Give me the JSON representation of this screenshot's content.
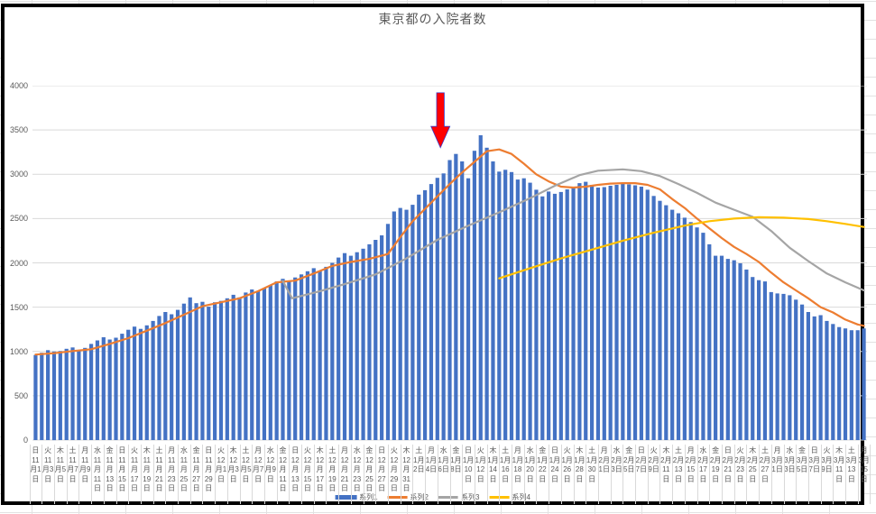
{
  "title": "東京都の入院者数",
  "colors": {
    "bar_blue": "#4472C4",
    "line_orange": "#ED7D31",
    "line_gray": "#A5A5A5",
    "line_yellow": "#FFC000",
    "arrow_red": "#FF0000",
    "arrow_outline": "#3A3AC8",
    "grid": "#D9D9D9",
    "text": "#595959"
  },
  "legend": [
    {
      "label": "系列1",
      "type": "bar",
      "color": "#4472C4"
    },
    {
      "label": "系列2",
      "type": "line",
      "color": "#ED7D31"
    },
    {
      "label": "系列3",
      "type": "line",
      "color": "#A5A5A5"
    },
    {
      "label": "系列4",
      "type": "line",
      "color": "#FFC000"
    }
  ],
  "y_ticks": [
    "0",
    "500",
    "1000",
    "1500",
    "2000",
    "2500",
    "3000",
    "3500",
    "4000"
  ],
  "annotation": {
    "shape": "down-arrow",
    "fill": "#FF0000",
    "outline": "#3A3AC8",
    "day_index": 65.5,
    "tail_value": 3920,
    "shoulder_value": 3540,
    "tip_value": 3300,
    "points_near_tick": "水 1月6日"
  },
  "chart_data": {
    "type": "bar+line combo",
    "title": "東京都の入院者数",
    "ylim": [
      0,
      4000
    ],
    "ytick_step": 500,
    "grid": true,
    "legend_position": "bottom",
    "x_range": "11月1日〜3月15日 (daily, 135 bars, tick label every 2 days)",
    "tick_labels": [
      "日 11月1日",
      "火 11月3日",
      "木 11月5日",
      "土 11月7日",
      "月 11月9日",
      "水 11月11日",
      "金 11月13日",
      "日 11月15日",
      "火 11月17日",
      "木 11月19日",
      "土 11月21日",
      "月 11月23日",
      "水 11月25日",
      "金 11月27日",
      "日 11月29日",
      "火 12月1日",
      "木 12月3日",
      "土 12月5日",
      "月 12月7日",
      "水 12月9日",
      "金 12月11日",
      "日 12月13日",
      "火 12月15日",
      "木 12月17日",
      "土 12月19日",
      "月 12月21日",
      "水 12月23日",
      "金 12月25日",
      "日 12月27日",
      "火 12月29日",
      "木 12月31日",
      "土 1月2日",
      "月 1月4日",
      "水 1月6日",
      "金 1月8日",
      "日 1月10日",
      "火 1月12日",
      "木 1月14日",
      "土 1月16日",
      "月 1月18日",
      "水 1月20日",
      "金 1月22日",
      "日 1月24日",
      "火 1月26日",
      "木 1月28日",
      "土 1月30日",
      "月 2月1日",
      "水 2月3日",
      "金 2月5日",
      "日 2月7日",
      "火 2月9日",
      "木 2月11日",
      "土 2月13日",
      "月 2月15日",
      "水 2月17日",
      "金 2月19日",
      "日 2月21日",
      "火 2月23日",
      "木 2月25日",
      "土 2月27日",
      "月 3月1日",
      "水 3月3日",
      "金 3月5日",
      "日 3月7日",
      "火 3月9日",
      "木 3月11日",
      "土 3月13日",
      "月 3月15日"
    ],
    "series": [
      {
        "name": "系列1",
        "type": "bar",
        "color": "#4472C4",
        "values": [
          960,
          985,
          1015,
          1000,
          1005,
          1030,
          1045,
          1010,
          1040,
          1085,
          1125,
          1160,
          1135,
          1155,
          1200,
          1245,
          1280,
          1255,
          1295,
          1345,
          1400,
          1445,
          1420,
          1470,
          1540,
          1610,
          1545,
          1560,
          1505,
          1555,
          1570,
          1600,
          1640,
          1610,
          1665,
          1700,
          1680,
          1715,
          1750,
          1790,
          1820,
          1790,
          1835,
          1870,
          1905,
          1940,
          1910,
          1955,
          2000,
          2060,
          2110,
          2080,
          2120,
          2160,
          2210,
          2260,
          2310,
          2440,
          2580,
          2620,
          2600,
          2655,
          2770,
          2820,
          2890,
          2960,
          3010,
          3160,
          3230,
          3145,
          2955,
          3265,
          3440,
          3300,
          3145,
          3030,
          3050,
          3025,
          2940,
          2955,
          2905,
          2825,
          2750,
          2805,
          2780,
          2800,
          2830,
          2855,
          2900,
          2915,
          2880,
          2850,
          2855,
          2870,
          2880,
          2895,
          2885,
          2875,
          2860,
          2825,
          2755,
          2700,
          2650,
          2600,
          2560,
          2510,
          2460,
          2400,
          2340,
          2210,
          2080,
          2080,
          2045,
          2030,
          1995,
          1925,
          1840,
          1805,
          1790,
          1670,
          1655,
          1650,
          1635,
          1585,
          1530,
          1445,
          1395,
          1410,
          1345,
          1310,
          1275,
          1260,
          1240,
          1240,
          1260
        ]
      },
      {
        "name": "系列2",
        "type": "line",
        "color": "#ED7D31",
        "points": [
          [
            0,
            965
          ],
          [
            3,
            980
          ],
          [
            6,
            1005
          ],
          [
            9,
            1025
          ],
          [
            12,
            1085
          ],
          [
            15,
            1150
          ],
          [
            18,
            1235
          ],
          [
            21,
            1320
          ],
          [
            24,
            1415
          ],
          [
            27,
            1510
          ],
          [
            30,
            1555
          ],
          [
            33,
            1600
          ],
          [
            36,
            1680
          ],
          [
            39,
            1780
          ],
          [
            42,
            1800
          ],
          [
            45,
            1880
          ],
          [
            48,
            1965
          ],
          [
            51,
            2010
          ],
          [
            54,
            2045
          ],
          [
            57,
            2100
          ],
          [
            59,
            2290
          ],
          [
            61,
            2470
          ],
          [
            63,
            2610
          ],
          [
            65,
            2750
          ],
          [
            67,
            2890
          ],
          [
            69,
            3020
          ],
          [
            71,
            3140
          ],
          [
            73,
            3260
          ],
          [
            75,
            3280
          ],
          [
            77,
            3230
          ],
          [
            79,
            3120
          ],
          [
            81,
            3000
          ],
          [
            83,
            2920
          ],
          [
            85,
            2860
          ],
          [
            87,
            2850
          ],
          [
            89,
            2860
          ],
          [
            91,
            2880
          ],
          [
            93,
            2895
          ],
          [
            95,
            2900
          ],
          [
            97,
            2900
          ],
          [
            99,
            2880
          ],
          [
            101,
            2830
          ],
          [
            103,
            2720
          ],
          [
            105,
            2620
          ],
          [
            107,
            2500
          ],
          [
            109,
            2390
          ],
          [
            111,
            2280
          ],
          [
            113,
            2180
          ],
          [
            115,
            2100
          ],
          [
            117,
            2010
          ],
          [
            119,
            1890
          ],
          [
            121,
            1780
          ],
          [
            123,
            1690
          ],
          [
            125,
            1600
          ],
          [
            127,
            1500
          ],
          [
            129,
            1440
          ],
          [
            131,
            1360
          ],
          [
            133,
            1305
          ],
          [
            134,
            1290
          ]
        ]
      },
      {
        "name": "系列3",
        "type": "line",
        "color": "#A5A5A5",
        "points": [
          [
            40,
            1795
          ],
          [
            41.5,
            1600
          ],
          [
            46,
            1680
          ],
          [
            50,
            1760
          ],
          [
            55,
            1870
          ],
          [
            60,
            2050
          ],
          [
            65,
            2260
          ],
          [
            70,
            2420
          ],
          [
            75,
            2570
          ],
          [
            80,
            2730
          ],
          [
            84,
            2870
          ],
          [
            88,
            2990
          ],
          [
            91,
            3040
          ],
          [
            95,
            3055
          ],
          [
            98,
            3035
          ],
          [
            101,
            2980
          ],
          [
            104,
            2890
          ],
          [
            107,
            2790
          ],
          [
            110,
            2680
          ],
          [
            113,
            2600
          ],
          [
            116,
            2520
          ],
          [
            119,
            2360
          ],
          [
            122,
            2170
          ],
          [
            125,
            2020
          ],
          [
            128,
            1880
          ],
          [
            131,
            1780
          ],
          [
            134,
            1690
          ]
        ]
      },
      {
        "name": "系列4",
        "type": "line",
        "color": "#FFC000",
        "points": [
          [
            75,
            1825
          ],
          [
            80,
            1940
          ],
          [
            85,
            2050
          ],
          [
            90,
            2150
          ],
          [
            95,
            2250
          ],
          [
            100,
            2340
          ],
          [
            105,
            2420
          ],
          [
            109,
            2470
          ],
          [
            113,
            2500
          ],
          [
            117,
            2515
          ],
          [
            121,
            2510
          ],
          [
            125,
            2495
          ],
          [
            128,
            2470
          ],
          [
            131,
            2440
          ],
          [
            134,
            2405
          ]
        ]
      }
    ]
  }
}
